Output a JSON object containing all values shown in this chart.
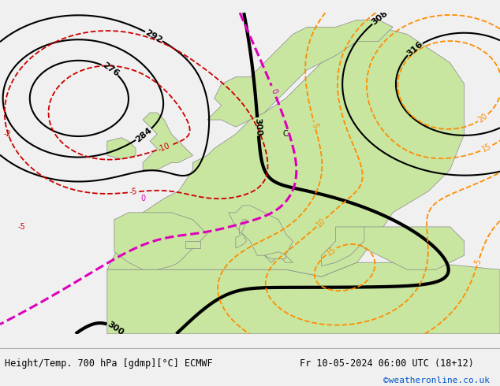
{
  "title_left": "Height/Temp. 700 hPa [gdmp][°C] ECMWF",
  "title_right": "Fr 10-05-2024 06:00 UTC (18+12)",
  "credit": "©weatheronline.co.uk",
  "bg_color": "#f0f0f0",
  "land_color_light": "#c8e6a0",
  "sea_color": "#dcdcdc",
  "geo_color": "#000000",
  "temp_neg_color": "#cc0000",
  "temp_pos_color": "#ff8c00",
  "temp_zero_color": "#dd00bb",
  "temp_pink_color": "#ff00aa"
}
